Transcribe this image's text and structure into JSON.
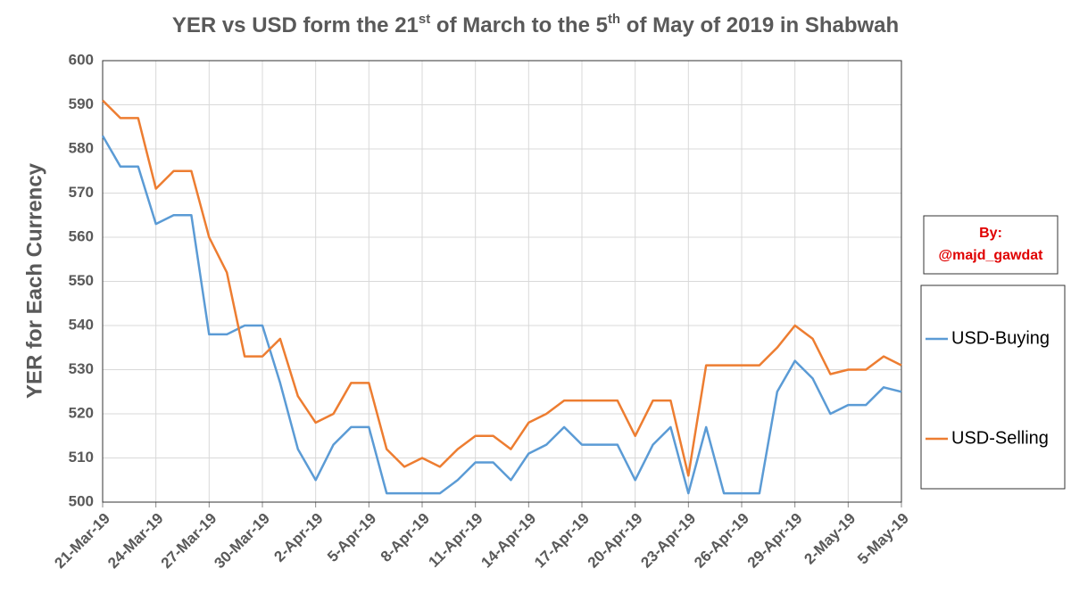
{
  "chart_data": {
    "type": "line",
    "title_parts": [
      "YER vs USD form the 21",
      "st",
      " of March to the 5",
      "th",
      " of May of 2019 in Shabwah"
    ],
    "y_label": "YER for Each Currency",
    "annotation": [
      "By:",
      "@majd_gawdat"
    ],
    "categories": [
      "21-Mar-19",
      null,
      null,
      "24-Mar-19",
      null,
      null,
      "27-Mar-19",
      null,
      null,
      "30-Mar-19",
      null,
      null,
      "2-Apr-19",
      null,
      null,
      "5-Apr-19",
      null,
      null,
      "8-Apr-19",
      null,
      null,
      "11-Apr-19",
      null,
      null,
      "14-Apr-19",
      null,
      null,
      "17-Apr-19",
      null,
      null,
      "20-Apr-19",
      null,
      null,
      "23-Apr-19",
      null,
      null,
      "26-Apr-19",
      null,
      null,
      "29-Apr-19",
      null,
      null,
      "2-May-19",
      null,
      null,
      "5-May-19"
    ],
    "series": [
      {
        "name": "USD-Buying",
        "color": "#5b9bd5",
        "values": [
          583,
          576,
          576,
          563,
          565,
          565,
          538,
          538,
          540,
          540,
          527,
          512,
          505,
          513,
          517,
          517,
          502,
          502,
          502,
          502,
          505,
          509,
          509,
          505,
          511,
          513,
          517,
          513,
          513,
          513,
          505,
          513,
          517,
          502,
          517,
          502,
          502,
          502,
          525,
          532,
          528,
          520,
          522,
          522,
          526,
          525
        ]
      },
      {
        "name": "USD-Selling",
        "color": "#ed7d31",
        "values": [
          591,
          587,
          587,
          571,
          575,
          575,
          560,
          552,
          533,
          533,
          537,
          524,
          518,
          520,
          527,
          527,
          512,
          508,
          510,
          508,
          512,
          515,
          515,
          512,
          518,
          520,
          523,
          523,
          523,
          523,
          515,
          523,
          523,
          506,
          531,
          531,
          531,
          531,
          535,
          540,
          537,
          529,
          530,
          530,
          533,
          531
        ]
      }
    ],
    "ylim": [
      500,
      600
    ],
    "yticks": [
      500,
      510,
      520,
      530,
      540,
      550,
      560,
      570,
      580,
      590,
      600
    ],
    "grid": true
  }
}
